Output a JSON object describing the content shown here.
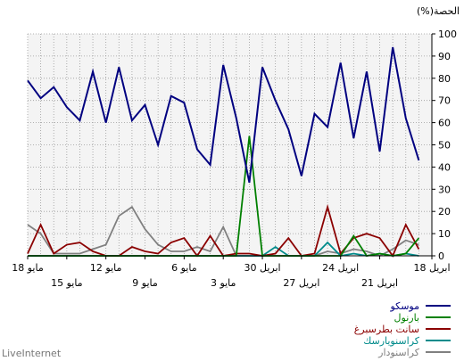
{
  "brand": "LiveInternet",
  "chart_data": {
    "type": "line",
    "ylabel": "(%)الحصة",
    "ylim": [
      0,
      100
    ],
    "yticks": [
      0,
      10,
      20,
      30,
      40,
      50,
      60,
      70,
      80,
      90,
      100
    ],
    "grid": true,
    "legend_position": "bottom-right",
    "x": [
      0,
      1,
      2,
      3,
      4,
      5,
      6,
      7,
      8,
      9,
      10,
      11,
      12,
      13,
      14,
      15,
      16,
      17,
      18,
      19,
      20,
      21,
      22,
      23,
      24,
      25,
      26,
      27,
      28,
      29,
      30,
      31
    ],
    "x_ticks_top": [
      {
        "x": 0,
        "label": "18 مايو"
      },
      {
        "x": 6,
        "label": "12 مايو"
      },
      {
        "x": 12,
        "label": "6 مايو"
      },
      {
        "x": 18,
        "label": "30 ابريل"
      },
      {
        "x": 24,
        "label": "24 ابريل"
      },
      {
        "x": 31,
        "label": "18 ابريل"
      }
    ],
    "x_ticks_bottom": [
      {
        "x": 3,
        "label": "15 مايو"
      },
      {
        "x": 9,
        "label": "9 مايو"
      },
      {
        "x": 15,
        "label": "3 مايو"
      },
      {
        "x": 21,
        "label": "27 ابريل"
      },
      {
        "x": 27,
        "label": "21 ابريل"
      }
    ],
    "series": [
      {
        "name": "موسكو",
        "color": "#000080",
        "values": [
          79,
          71,
          76,
          67,
          61,
          83,
          60,
          85,
          61,
          68,
          50,
          72,
          69,
          48,
          41,
          86,
          62,
          33,
          85,
          70,
          57,
          36,
          64,
          58,
          87,
          53,
          83,
          47,
          94,
          62,
          43,
          null
        ]
      },
      {
        "name": "بارنول",
        "color": "#008000",
        "values": [
          0,
          0,
          0,
          0,
          0,
          0,
          0,
          0,
          0,
          0,
          0,
          0,
          0,
          0,
          0,
          0,
          0,
          54,
          0,
          0,
          0,
          0,
          0,
          0,
          0,
          9,
          0,
          1,
          0,
          1,
          8,
          null
        ]
      },
      {
        "name": "سانت بطرسبرغ",
        "color": "#8b0000",
        "values": [
          1,
          14,
          1,
          5,
          6,
          2,
          0,
          0,
          4,
          2,
          1,
          6,
          8,
          0,
          9,
          0,
          1,
          1,
          0,
          1,
          8,
          0,
          1,
          22,
          1,
          8,
          10,
          8,
          0,
          14,
          3,
          null
        ]
      },
      {
        "name": "كراسنويارسك",
        "color": "#008b8b",
        "values": [
          0,
          0,
          0,
          0,
          0,
          0,
          0,
          0,
          0,
          0,
          0,
          0,
          0,
          0,
          0,
          0,
          0,
          0,
          0,
          4,
          0,
          0,
          0,
          6,
          0,
          1,
          0,
          1,
          0,
          1,
          0,
          null
        ]
      },
      {
        "name": "كراسنودار",
        "color": "#808080",
        "values": [
          14,
          10,
          1,
          1,
          1,
          3,
          5,
          18,
          22,
          12,
          5,
          2,
          2,
          4,
          2,
          13,
          0,
          0,
          0,
          0,
          0,
          0,
          0,
          2,
          1,
          3,
          2,
          0,
          3,
          7,
          5,
          null
        ]
      }
    ]
  }
}
